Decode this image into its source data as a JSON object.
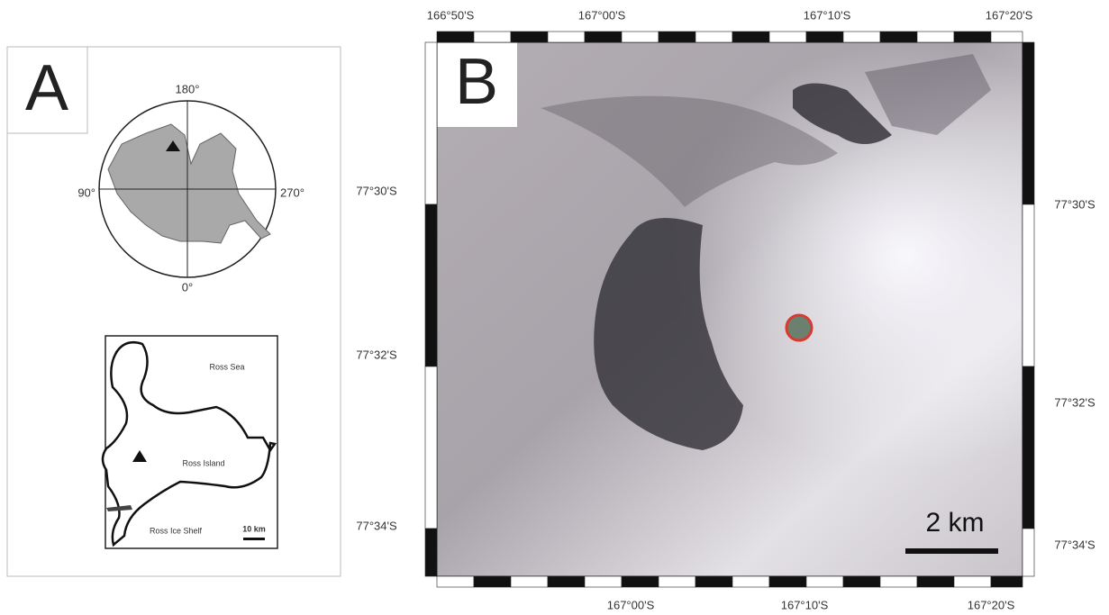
{
  "panel_a": {
    "label": "A",
    "compass": {
      "top": "180°",
      "left": "90°",
      "right": "270°",
      "bottom": "0°"
    },
    "inset": {
      "sea": "Ross Sea",
      "island": "Ross Island",
      "shelf": "Ross Ice Shelf",
      "scale": "10 km"
    }
  },
  "panel_b": {
    "label": "B",
    "top_labels": [
      "166°50'S",
      "167°00'S",
      "167°10'S",
      "167°20'S"
    ],
    "left_labels": [
      "77°30'S",
      "77°32'S",
      "77°34'S"
    ],
    "right_labels": [
      "77°30'S",
      "77°32'S",
      "77°34'S"
    ],
    "bottom_labels": [
      "167°00'S",
      "167°10'S",
      "167°20'S"
    ],
    "scale": "2 km"
  }
}
